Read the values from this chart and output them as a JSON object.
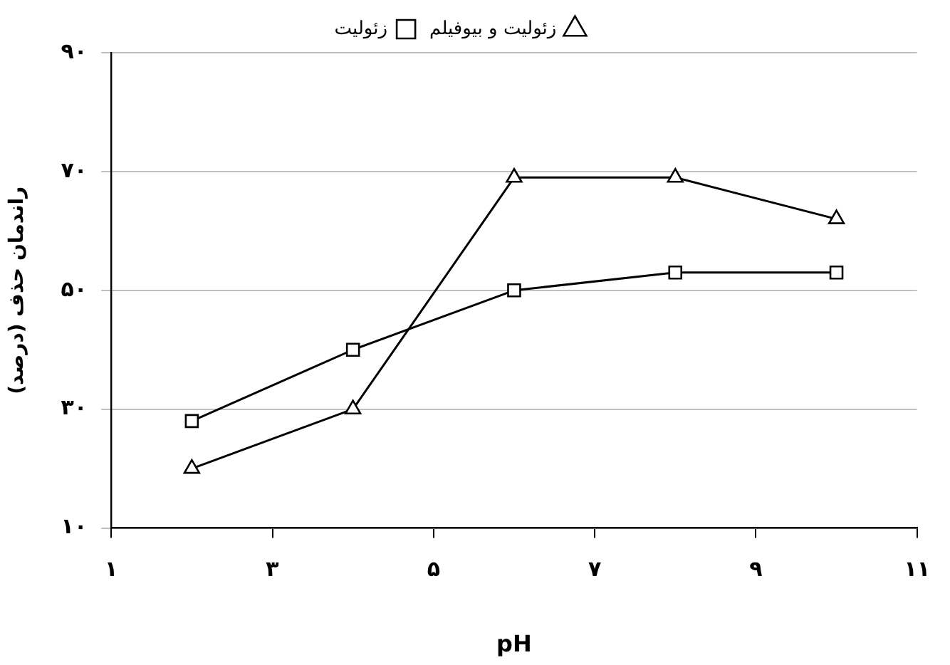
{
  "chart_data": {
    "type": "line",
    "xlabel": "pH",
    "ylabel": "راندمان حذف (درصد)",
    "x": [
      2,
      4,
      6,
      8,
      10
    ],
    "series": [
      {
        "name": "زئولیت و بیوفیلم",
        "color": "#000000",
        "marker": "triangle",
        "values": [
          20,
          30,
          69,
          69,
          62
        ]
      },
      {
        "name": "زئولیت",
        "color": "#000000",
        "marker": "square",
        "values": [
          28,
          40,
          50,
          53,
          53
        ]
      }
    ],
    "xlim": [
      1,
      11
    ],
    "xticks": [
      {
        "value": 1,
        "label": "۱"
      },
      {
        "value": 3,
        "label": "۳"
      },
      {
        "value": 5,
        "label": "۵"
      },
      {
        "value": 7,
        "label": "۷"
      },
      {
        "value": 9,
        "label": "۹"
      },
      {
        "value": 11,
        "label": "۱۱"
      }
    ],
    "ylim": [
      10,
      90
    ],
    "yticks": [
      {
        "value": 10,
        "label": "۱۰"
      },
      {
        "value": 30,
        "label": "۳۰"
      },
      {
        "value": 50,
        "label": "۵۰"
      },
      {
        "value": 70,
        "label": "۷۰"
      },
      {
        "value": 90,
        "label": "۹۰"
      }
    ],
    "grid": "y",
    "legend": "top"
  }
}
